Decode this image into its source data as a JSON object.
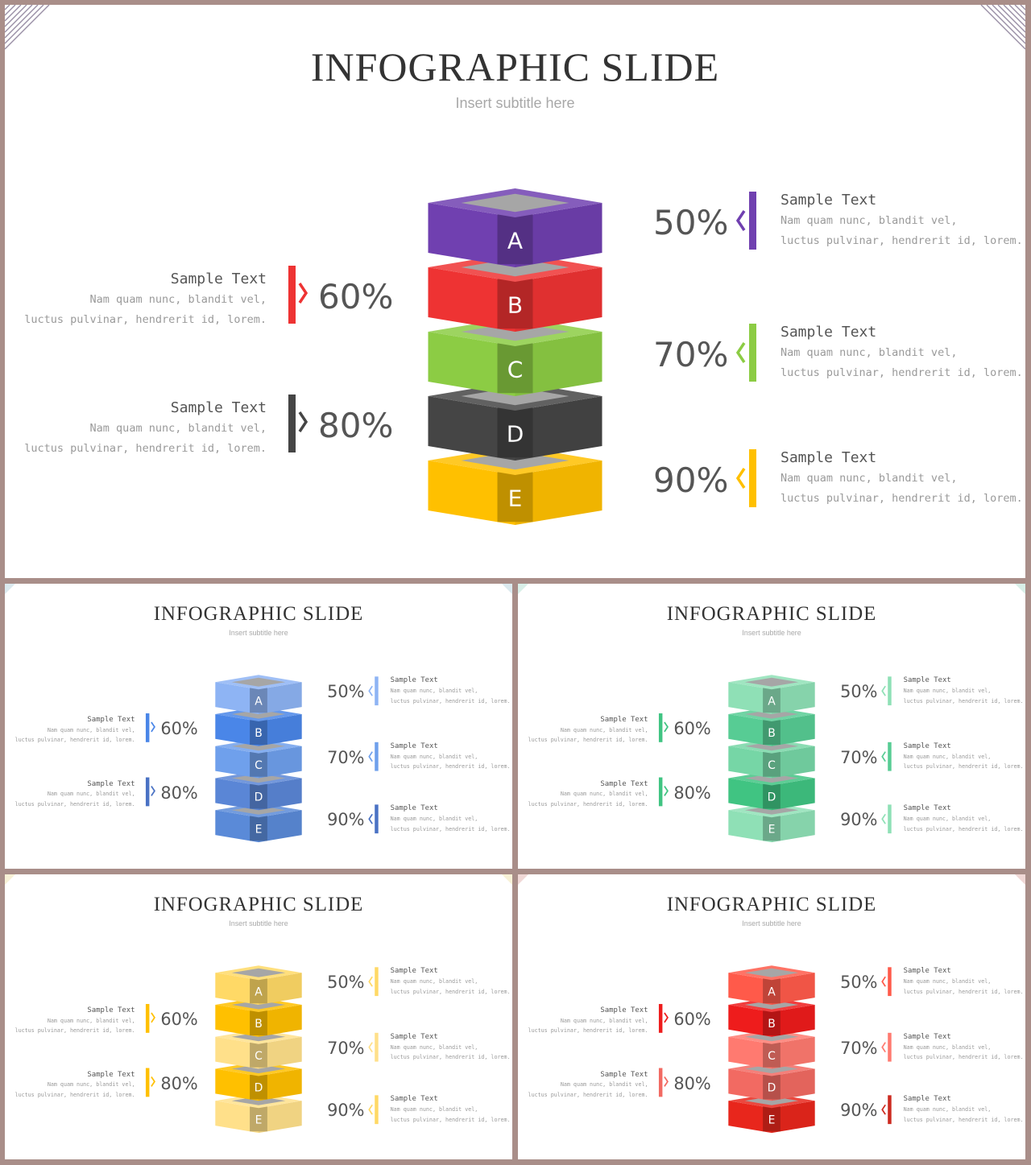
{
  "title": "INFOGRAPHIC SLIDE",
  "subtitle": "Insert  subtitle  here",
  "block_letters": [
    "A",
    "B",
    "C",
    "D",
    "E"
  ],
  "left_items": [
    {
      "percent": "60%",
      "heading": "Sample  Text",
      "line1": "Nam  quam  nunc,  blandit  vel,",
      "line2": "luctus  pulvinar,  hendrerit  id,  lorem."
    },
    {
      "percent": "80%",
      "heading": "Sample  Text",
      "line1": "Nam  quam  nunc,  blandit  vel,",
      "line2": "luctus  pulvinar,  hendrerit  id,  lorem."
    }
  ],
  "right_items": [
    {
      "percent": "50%",
      "heading": "Sample  Text",
      "line1": "Nam  quam  nunc,  blandit  vel,",
      "line2": "luctus  pulvinar,  hendrerit  id,  lorem."
    },
    {
      "percent": "70%",
      "heading": "Sample  Text",
      "line1": "Nam  quam  nunc,  blandit  vel,",
      "line2": "luctus  pulvinar,  hendrerit  id,  lorem."
    },
    {
      "percent": "90%",
      "heading": "Sample  Text",
      "line1": "Nam  quam  nunc,  blandit  vel,",
      "line2": "luctus  pulvinar,  hendrerit  id,  lorem."
    }
  ],
  "themes": [
    {
      "name": "multicolor",
      "blocks": [
        "#7040b0",
        "#ee3333",
        "#8ccc44",
        "#454545",
        "#ffc000"
      ],
      "left_bars": [
        "#ee3333",
        "#454545"
      ],
      "right_bars": [
        "#7040b0",
        "#8ccc44",
        "#ffc000"
      ],
      "corner": "#9a8fa6"
    },
    {
      "name": "blue",
      "blocks": [
        "#8eb4f4",
        "#4a86e8",
        "#6fa0ec",
        "#5a86d6",
        "#5a8ad8"
      ],
      "left_bars": [
        "#4a86e8",
        "#4a72c4"
      ],
      "right_bars": [
        "#8eb4f4",
        "#6fa0ec",
        "#4a72c4"
      ],
      "corner": "#dbe9ee"
    },
    {
      "name": "green",
      "blocks": [
        "#8fe0b6",
        "#57cc94",
        "#76d6a6",
        "#40c482",
        "#8fe0b6"
      ],
      "left_bars": [
        "#40c482",
        "#40c482"
      ],
      "right_bars": [
        "#8fe0b6",
        "#57cc94",
        "#8fe0b6"
      ],
      "corner": "#d9efe8"
    },
    {
      "name": "yellow",
      "blocks": [
        "#ffd966",
        "#ffc000",
        "#ffe08a",
        "#ffc000",
        "#ffe08a"
      ],
      "left_bars": [
        "#ffc000",
        "#ffc000"
      ],
      "right_bars": [
        "#ffd966",
        "#ffe08a",
        "#ffd966"
      ],
      "corner": "#f7f1d6"
    },
    {
      "name": "red",
      "blocks": [
        "#ff5a4a",
        "#ee1c1c",
        "#ff7a70",
        "#f26a62",
        "#e8261c"
      ],
      "left_bars": [
        "#ee1c1c",
        "#f26a62"
      ],
      "right_bars": [
        "#ff5a4a",
        "#ff7a70",
        "#cc2a20"
      ],
      "corner": "#f0d8d6"
    }
  ]
}
